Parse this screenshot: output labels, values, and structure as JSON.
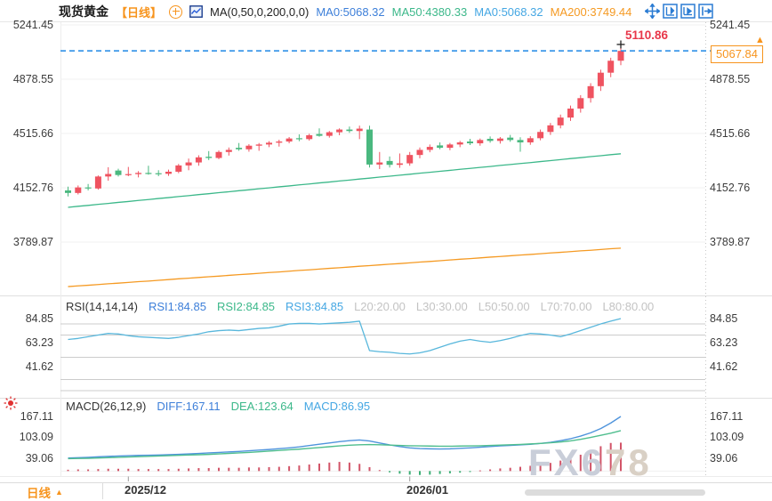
{
  "header": {
    "symbol": "现货黄金",
    "period_tag": "【日线】",
    "ma_settings": "MA(0,50,0,200,0,0)",
    "ma_values": [
      {
        "label": "MA0:5068.32"
      },
      {
        "label": "MA50:4380.33"
      },
      {
        "label": "MA0:5068.32"
      },
      {
        "label": "MA200:3749.44"
      }
    ]
  },
  "main_panel": {
    "y_labels": [
      "5241.45",
      "4878.55",
      "4515.66",
      "4152.76",
      "3789.87"
    ],
    "high_label": "5110.86",
    "price_tag": "5067.84",
    "price_tag_arrow": "▲"
  },
  "rsi_panel": {
    "title": "RSI(14,14,14)",
    "values": [
      {
        "label": "RSI1:84.85"
      },
      {
        "label": "RSI2:84.85"
      },
      {
        "label": "RSI3:84.85"
      }
    ],
    "levels": [
      "L20:20.00",
      "L30:30.00",
      "L50:50.00",
      "L70:70.00",
      "L80:80.00"
    ],
    "y_labels": [
      "84.85",
      "63.23",
      "41.62"
    ]
  },
  "macd_panel": {
    "title": "MACD(26,12,9)",
    "values": [
      {
        "label": "DIFF:167.11"
      },
      {
        "label": "DEA:123.64"
      },
      {
        "label": "MACD:86.95"
      }
    ],
    "y_labels": [
      "167.11",
      "103.09",
      "39.06"
    ]
  },
  "bottom_bar": {
    "period": "日线",
    "period_arrow": "▲",
    "dates": [
      "2025/12",
      "2026/01"
    ]
  },
  "watermark": {
    "part1": "FX6",
    "part2": "78"
  },
  "colors": {
    "up_candle": "#ef5360",
    "down_candle": "#4ab87f",
    "ma50_line": "#3cb88a",
    "ma200_line": "#f59a23",
    "rsi_line": "#58b7dc",
    "diff_line": "#4f94dc",
    "dea_line": "#4fbe8e",
    "dashed_price_line": "#1e88e5",
    "accent_orange": "#f7941d",
    "high_label_red": "#e8374a",
    "toolbar_blue": "#2b7cd3"
  },
  "chart_data": {
    "type": "candlestick",
    "title": "现货黄金 日线 (Spot Gold, Daily)",
    "panels": [
      "price+MA",
      "RSI",
      "MACD"
    ],
    "legend": [
      "MA50",
      "MA200",
      "RSI1",
      "DIFF",
      "DEA",
      "MACD histogram"
    ],
    "candles_ohlc": [
      [
        4135,
        4160,
        4095,
        4118
      ],
      [
        4118,
        4168,
        4108,
        4155
      ],
      [
        4155,
        4178,
        4135,
        4148
      ],
      [
        4148,
        4235,
        4140,
        4228
      ],
      [
        4228,
        4290,
        4200,
        4245
      ],
      [
        4268,
        4280,
        4228,
        4238
      ],
      [
        4238,
        4292,
        4230,
        4244
      ],
      [
        4244,
        4264,
        4222,
        4252
      ],
      [
        4252,
        4300,
        4240,
        4250
      ],
      [
        4250,
        4270,
        4230,
        4246
      ],
      [
        4246,
        4274,
        4232,
        4260
      ],
      [
        4260,
        4312,
        4250,
        4302
      ],
      [
        4302,
        4348,
        4270,
        4322
      ],
      [
        4322,
        4370,
        4300,
        4356
      ],
      [
        4360,
        4398,
        4338,
        4352
      ],
      [
        4352,
        4402,
        4344,
        4392
      ],
      [
        4392,
        4422,
        4368,
        4406
      ],
      [
        4420,
        4452,
        4400,
        4410
      ],
      [
        4410,
        4444,
        4394,
        4434
      ],
      [
        4434,
        4452,
        4400,
        4442
      ],
      [
        4442,
        4464,
        4424,
        4454
      ],
      [
        4454,
        4474,
        4428,
        4462
      ],
      [
        4462,
        4492,
        4450,
        4482
      ],
      [
        4484,
        4510,
        4464,
        4478
      ],
      [
        4478,
        4514,
        4468,
        4504
      ],
      [
        4512,
        4550,
        4494,
        4500
      ],
      [
        4500,
        4532,
        4488,
        4524
      ],
      [
        4524,
        4550,
        4504,
        4542
      ],
      [
        4542,
        4562,
        4520,
        4532
      ],
      [
        4532,
        4568,
        4478,
        4548
      ],
      [
        4542,
        4568,
        4288,
        4308
      ],
      [
        4308,
        4392,
        4278,
        4322
      ],
      [
        4332,
        4362,
        4288,
        4306
      ],
      [
        4306,
        4382,
        4286,
        4316
      ],
      [
        4316,
        4392,
        4300,
        4372
      ],
      [
        4372,
        4422,
        4350,
        4406
      ],
      [
        4406,
        4442,
        4390,
        4426
      ],
      [
        4436,
        4456,
        4410,
        4420
      ],
      [
        4420,
        4452,
        4404,
        4442
      ],
      [
        4442,
        4466,
        4424,
        4456
      ],
      [
        4462,
        4480,
        4438,
        4450
      ],
      [
        4450,
        4482,
        4434,
        4472
      ],
      [
        4480,
        4496,
        4454,
        4466
      ],
      [
        4466,
        4492,
        4448,
        4482
      ],
      [
        4488,
        4506,
        4460,
        4472
      ],
      [
        4472,
        4490,
        4394,
        4456
      ],
      [
        4456,
        4498,
        4440,
        4484
      ],
      [
        4484,
        4542,
        4470,
        4526
      ],
      [
        4526,
        4586,
        4506,
        4570
      ],
      [
        4570,
        4642,
        4550,
        4622
      ],
      [
        4622,
        4702,
        4600,
        4682
      ],
      [
        4682,
        4772,
        4655,
        4752
      ],
      [
        4752,
        4852,
        4722,
        4832
      ],
      [
        4832,
        4942,
        4800,
        4922
      ],
      [
        4922,
        5022,
        4892,
        5002
      ],
      [
        5002,
        5110.86,
        4972,
        5067.84
      ]
    ],
    "ma50": [
      4022,
      4029,
      4035,
      4042,
      4048,
      4055,
      4061,
      4068,
      4074,
      4081,
      4087,
      4094,
      4100,
      4107,
      4113,
      4120,
      4126,
      4133,
      4139,
      4146,
      4152,
      4159,
      4165,
      4172,
      4178,
      4185,
      4191,
      4198,
      4204,
      4211,
      4217,
      4224,
      4230,
      4237,
      4243,
      4250,
      4256,
      4263,
      4269,
      4276,
      4282,
      4289,
      4295,
      4302,
      4308,
      4315,
      4321,
      4328,
      4334,
      4341,
      4348,
      4354,
      4361,
      4367,
      4374,
      4380
    ],
    "ma200": [
      3492,
      3497,
      3501,
      3506,
      3511,
      3515,
      3520,
      3525,
      3529,
      3534,
      3539,
      3544,
      3548,
      3553,
      3558,
      3562,
      3567,
      3572,
      3576,
      3581,
      3586,
      3590,
      3595,
      3600,
      3604,
      3609,
      3614,
      3618,
      3623,
      3628,
      3632,
      3637,
      3642,
      3646,
      3651,
      3656,
      3660,
      3665,
      3670,
      3675,
      3679,
      3684,
      3689,
      3693,
      3698,
      3703,
      3707,
      3712,
      3717,
      3721,
      3726,
      3731,
      3735,
      3740,
      3745,
      3749
    ],
    "rsi1": [
      66,
      67,
      68.5,
      70,
      71.5,
      71,
      69.5,
      68.5,
      68,
      67.5,
      67,
      68,
      69.5,
      71,
      73,
      74,
      74.5,
      74,
      75,
      76,
      76.5,
      78,
      80,
      80.5,
      80.5,
      80,
      80.5,
      81,
      81.5,
      82.5,
      56,
      55,
      54.5,
      53.5,
      53,
      54,
      56,
      59,
      62,
      64.5,
      66,
      64.5,
      63.5,
      65,
      67,
      69.5,
      71.5,
      71,
      70,
      68.5,
      71,
      74,
      77,
      80,
      82.5,
      84.85
    ],
    "macd_diff": [
      40,
      41,
      42,
      43.5,
      45,
      46,
      47,
      48,
      48.5,
      49,
      50,
      51,
      52.5,
      54,
      55.5,
      57,
      58.5,
      60,
      62,
      64,
      66,
      68.5,
      71,
      74,
      78,
      82,
      86,
      90,
      93,
      95,
      92,
      86,
      80,
      75,
      71,
      69,
      68,
      67.5,
      68,
      69.5,
      71,
      73,
      75,
      77,
      78.5,
      80,
      82,
      84.5,
      88,
      93,
      99,
      107,
      117,
      130,
      147,
      167.11
    ],
    "macd_dea": [
      38,
      38.5,
      39,
      40,
      41,
      42,
      43,
      44,
      45,
      46,
      47,
      48,
      49,
      50,
      51,
      52.5,
      54,
      55.5,
      57,
      59,
      61,
      63,
      65,
      67,
      69.5,
      72,
      74.5,
      77,
      79,
      80.5,
      81,
      80.5,
      79.5,
      78.5,
      77.5,
      77,
      76.5,
      76,
      76,
      76.5,
      77,
      77.5,
      78.5,
      79.5,
      80.5,
      81.5,
      83,
      84.5,
      86.5,
      89,
      92.5,
      97,
      103,
      109.5,
      116,
      123.64
    ],
    "macd_hist": [
      4,
      5,
      5,
      6,
      7,
      7,
      7,
      6,
      6,
      6,
      6,
      7,
      8,
      9,
      9,
      10,
      10,
      10,
      11,
      11,
      12,
      13,
      15,
      17,
      20,
      23,
      26,
      28,
      26,
      22,
      12,
      3,
      -4,
      -8,
      -11,
      -12,
      -11,
      -9,
      -7,
      -5,
      -3,
      2,
      5,
      8,
      10,
      13,
      16,
      20,
      25,
      32,
      40,
      50,
      62,
      76,
      86,
      86.95
    ],
    "axes": {
      "price_ticks": [
        5241.45,
        4878.55,
        4515.66,
        4152.76,
        3789.87
      ],
      "rsi_ticks": [
        84.85,
        63.23,
        41.62
      ],
      "rsi_levels": [
        80,
        70,
        50,
        30,
        20
      ],
      "macd_ticks": [
        167.11,
        103.09,
        39.06
      ],
      "x_tick_labels": [
        "2025/12",
        "2026/01"
      ],
      "x_tick_indices": [
        6,
        34
      ]
    },
    "markers": {
      "high_value": 5110.86,
      "last_price": 5067.84
    }
  }
}
